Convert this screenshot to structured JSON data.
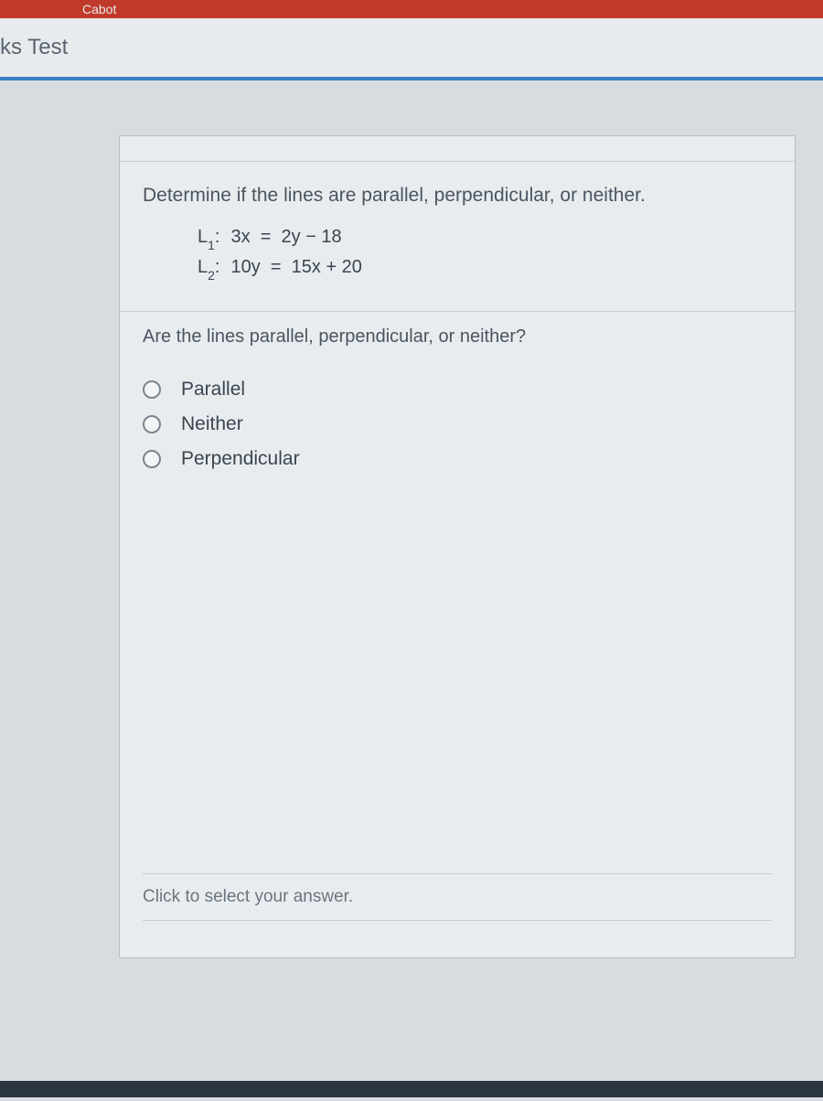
{
  "topbar": {
    "fragment": "Cabot"
  },
  "header": {
    "title_fragment": "ks Test"
  },
  "question": {
    "prompt": "Determine if the lines are parallel, perpendicular, or neither.",
    "equations": [
      {
        "label_main": "L",
        "label_sub": "1",
        "lhs": "3x",
        "rhs": "2y − 18"
      },
      {
        "label_main": "L",
        "label_sub": "2",
        "lhs": "10y",
        "rhs": "15x + 20"
      }
    ],
    "sub_prompt": "Are the lines parallel, perpendicular, or neither?",
    "options": [
      {
        "label": "Parallel"
      },
      {
        "label": "Neither"
      },
      {
        "label": "Perpendicular"
      }
    ],
    "footer_hint": "Click to select your answer."
  },
  "colors": {
    "topbar_bg": "#c03a2b",
    "header_bg": "#e8ebee",
    "accent_border": "#3a7fc4",
    "card_bg": "#e8ecef",
    "body_bg": "#c8cdd3",
    "text_primary": "#4a5560",
    "text_secondary": "#6a7580",
    "radio_border": "#7a8590",
    "divider": "#c5ccd3"
  },
  "typography": {
    "question_fontsize": 21,
    "equation_fontsize": 20,
    "option_fontsize": 21,
    "hint_fontsize": 19,
    "header_fontsize": 24
  }
}
